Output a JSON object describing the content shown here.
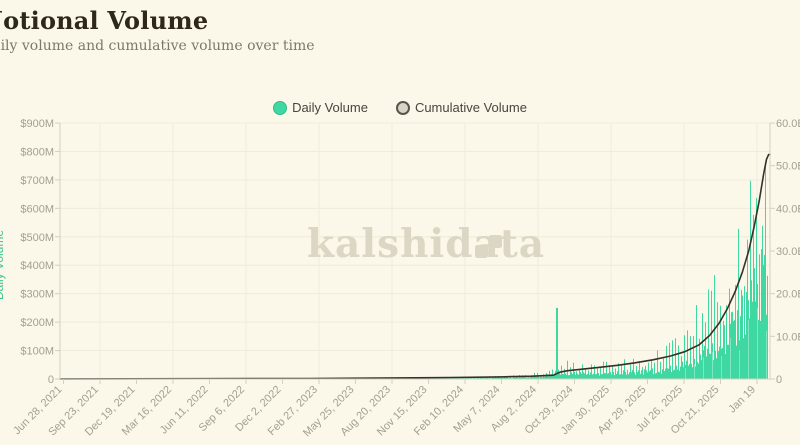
{
  "header": {
    "title": "Notional Volume",
    "subtitle": "Daily volume and cumulative volume over time"
  },
  "legend": {
    "items": [
      {
        "label": "Daily Volume",
        "marker_color": "#3fd8a2"
      },
      {
        "label": "Cumulative Volume",
        "marker_fill": "#d9d4c6",
        "marker_border": "#5a554c"
      }
    ]
  },
  "watermark": {
    "text": "kalshidata",
    "logo": "stairs-icon"
  },
  "chart_data": {
    "type": "bar+line",
    "title": "Notional Volume",
    "subtitle": "Daily volume and cumulative volume over time",
    "left_axis": {
      "title": "Daily Volume",
      "ticks": [
        "$900M",
        "$800M",
        "$700M",
        "$600M",
        "$500M",
        "$400M",
        "$300M",
        "$200M",
        "$100M",
        "0"
      ],
      "range": [
        0,
        900
      ]
    },
    "right_axis": {
      "ticks": [
        "60.0B",
        "50.0B",
        "40.0B",
        "30.0B",
        "20.0B",
        "10.0B",
        "0"
      ],
      "range": [
        0,
        60
      ]
    },
    "x_axis": {
      "labels": [
        "Jun 28, 2021",
        "Sep 23, 2021",
        "Dec 19, 2021",
        "Mar 16, 2022",
        "Jun 11, 2022",
        "Sep 6, 2022",
        "Dec 2, 2022",
        "Feb 27, 2023",
        "May 25, 2023",
        "Aug 20, 2023",
        "Nov 15, 2023",
        "Feb 10, 2024",
        "May 7, 2024",
        "Aug 2, 2024",
        "Oct 29, 2024",
        "Jan 30, 2025",
        "Apr 29, 2025",
        "Jul 26, 2025",
        "Oct 21, 2025",
        "Jan 19"
      ]
    },
    "series": [
      {
        "name": "Daily Volume",
        "type": "bar",
        "axis": "left",
        "color": "#3fd8a2"
      },
      {
        "name": "Cumulative Volume",
        "type": "line",
        "axis": "right",
        "color": "#36302a"
      }
    ],
    "daily_volume_envelope_M": [
      [
        0.0,
        0.4,
        1.0
      ],
      [
        0.3,
        0.8,
        2
      ],
      [
        0.5,
        1.5,
        4
      ],
      [
        0.58,
        3,
        7
      ],
      [
        0.64,
        5,
        12
      ],
      [
        0.675,
        9,
        22
      ],
      [
        0.695,
        18,
        45
      ],
      [
        0.71,
        26,
        68
      ],
      [
        0.73,
        22,
        58
      ],
      [
        0.755,
        20,
        55
      ],
      [
        0.79,
        26,
        65
      ],
      [
        0.825,
        30,
        85
      ],
      [
        0.855,
        38,
        105
      ],
      [
        0.875,
        55,
        160
      ],
      [
        0.895,
        80,
        260
      ],
      [
        0.915,
        110,
        350
      ],
      [
        0.935,
        150,
        440
      ],
      [
        0.952,
        215,
        520
      ],
      [
        0.968,
        290,
        640
      ],
      [
        0.983,
        370,
        760
      ],
      [
        1.0,
        430,
        870
      ]
    ],
    "notable_points": [
      {
        "f": 0.702,
        "value_M": 250
      }
    ],
    "cumulative_volume_B": [
      [
        0.0,
        0.02
      ],
      [
        0.2,
        0.06
      ],
      [
        0.35,
        0.12
      ],
      [
        0.45,
        0.2
      ],
      [
        0.55,
        0.35
      ],
      [
        0.62,
        0.5
      ],
      [
        0.665,
        0.65
      ],
      [
        0.695,
        0.9
      ],
      [
        0.704,
        1.6
      ],
      [
        0.715,
        1.95
      ],
      [
        0.735,
        2.3
      ],
      [
        0.76,
        2.75
      ],
      [
        0.785,
        3.2
      ],
      [
        0.81,
        3.8
      ],
      [
        0.835,
        4.5
      ],
      [
        0.86,
        5.4
      ],
      [
        0.88,
        6.4
      ],
      [
        0.9,
        8.0
      ],
      [
        0.915,
        10.2
      ],
      [
        0.928,
        13.0
      ],
      [
        0.94,
        16.5
      ],
      [
        0.951,
        20.5
      ],
      [
        0.961,
        25.0
      ],
      [
        0.97,
        30.0
      ],
      [
        0.978,
        36.0
      ],
      [
        0.985,
        42.0
      ],
      [
        0.991,
        48.0
      ],
      [
        0.995,
        51.5
      ],
      [
        0.998,
        52.6
      ],
      [
        1.0,
        52.6
      ]
    ],
    "grid": {
      "h_lines": 10,
      "v_lines_at_every_other_x_tick": true
    },
    "colors": {
      "background": "#fbf7e9",
      "grid": "#f0ebda",
      "axis": "#d5d0bf",
      "tick_label": "#a59f91",
      "bar": "#3fd8a2",
      "bar_light": "#7fe7c3",
      "line": "#36302a",
      "watermark": "#dcd7c4",
      "axis_title_green": "#3cc492",
      "title": "#2d2818",
      "subtitle": "#7f7868"
    }
  }
}
